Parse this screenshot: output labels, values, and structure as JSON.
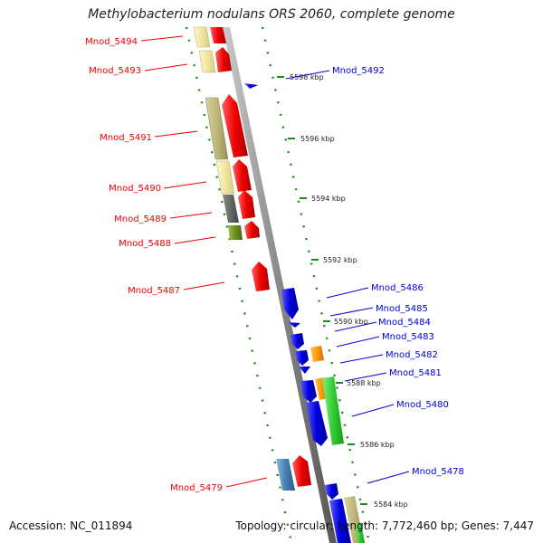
{
  "title": "Methylobacterium nodulans ORS 2060, complete genome",
  "accession": "Accession: NC_011894",
  "summary": "Topology: circular; Length: 7,772,460 bp; Genes: 7,447",
  "colors": {
    "forward": "#ee0000",
    "reverse": "#0000dd",
    "backbone": "#888888",
    "dots": "#1a8a1a"
  },
  "scale_ticks": [
    {
      "label": "5598 kbp"
    },
    {
      "label": "5596 kbp"
    },
    {
      "label": "5594 kbp"
    },
    {
      "label": "5592 kbp"
    },
    {
      "label": "5590 kbp"
    },
    {
      "label": "5588 kbp"
    },
    {
      "label": "5586 kbp"
    },
    {
      "label": "5584 kbp"
    }
  ],
  "left_labels": [
    {
      "label": "Mnod_5494"
    },
    {
      "label": "Mnod_5493"
    },
    {
      "label": "Mnod_5491"
    },
    {
      "label": "Mnod_5490"
    },
    {
      "label": "Mnod_5489"
    },
    {
      "label": "Mnod_5488"
    },
    {
      "label": "Mnod_5487"
    },
    {
      "label": "Mnod_5479"
    }
  ],
  "right_labels": [
    {
      "label": "Mnod_5492"
    },
    {
      "label": "Mnod_5486"
    },
    {
      "label": "Mnod_5485"
    },
    {
      "label": "Mnod_5484"
    },
    {
      "label": "Mnod_5483"
    },
    {
      "label": "Mnod_5482"
    },
    {
      "label": "Mnod_5481"
    },
    {
      "label": "Mnod_5480"
    },
    {
      "label": "Mnod_5478"
    }
  ]
}
